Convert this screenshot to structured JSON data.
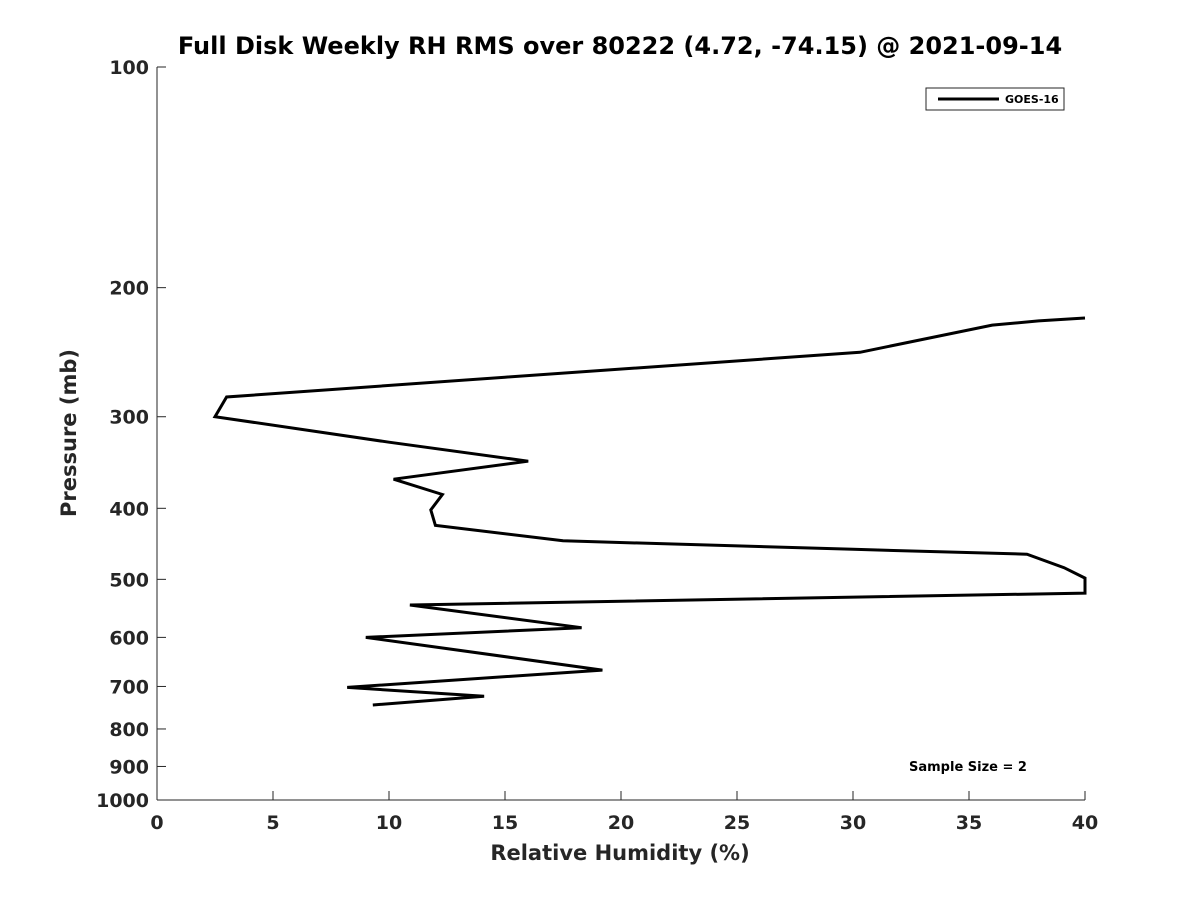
{
  "chart_data": {
    "type": "line",
    "title": "Full Disk Weekly RH RMS over 80222 (4.72, -74.15) @ 2021-09-14",
    "xlabel": "Relative Humidity (%)",
    "ylabel": "Pressure (mb)",
    "xlim": [
      0,
      40
    ],
    "ylim": [
      100,
      1000
    ],
    "yscale": "log",
    "yreversed": true,
    "grid": false,
    "legend_position": "top-right",
    "xticks": [
      "0",
      "5",
      "10",
      "15",
      "20",
      "25",
      "30",
      "35",
      "40"
    ],
    "yticks": [
      "100",
      "200",
      "300",
      "400",
      "500",
      "600",
      "700",
      "800",
      "900",
      "1000"
    ],
    "series": [
      {
        "name": "GOES-16",
        "color": "#000000",
        "points": [
          {
            "x": 40.0,
            "y": 220
          },
          {
            "x": 38.0,
            "y": 222
          },
          {
            "x": 36.0,
            "y": 225
          },
          {
            "x": 30.3,
            "y": 245
          },
          {
            "x": 15.0,
            "y": 265
          },
          {
            "x": 3.0,
            "y": 282
          },
          {
            "x": 2.5,
            "y": 300
          },
          {
            "x": 10.0,
            "y": 325
          },
          {
            "x": 16.0,
            "y": 345
          },
          {
            "x": 10.2,
            "y": 365
          },
          {
            "x": 12.3,
            "y": 383
          },
          {
            "x": 11.8,
            "y": 402
          },
          {
            "x": 12.0,
            "y": 422
          },
          {
            "x": 17.5,
            "y": 443
          },
          {
            "x": 30.0,
            "y": 455
          },
          {
            "x": 37.5,
            "y": 462
          },
          {
            "x": 39.1,
            "y": 482
          },
          {
            "x": 40.0,
            "y": 498
          },
          {
            "x": 40.0,
            "y": 522
          },
          {
            "x": 10.9,
            "y": 542
          },
          {
            "x": 18.3,
            "y": 582
          },
          {
            "x": 9.0,
            "y": 600
          },
          {
            "x": 19.2,
            "y": 665
          },
          {
            "x": 8.2,
            "y": 702
          },
          {
            "x": 14.1,
            "y": 722
          },
          {
            "x": 9.3,
            "y": 742
          }
        ]
      }
    ],
    "annotation": "Sample Size = 2"
  }
}
